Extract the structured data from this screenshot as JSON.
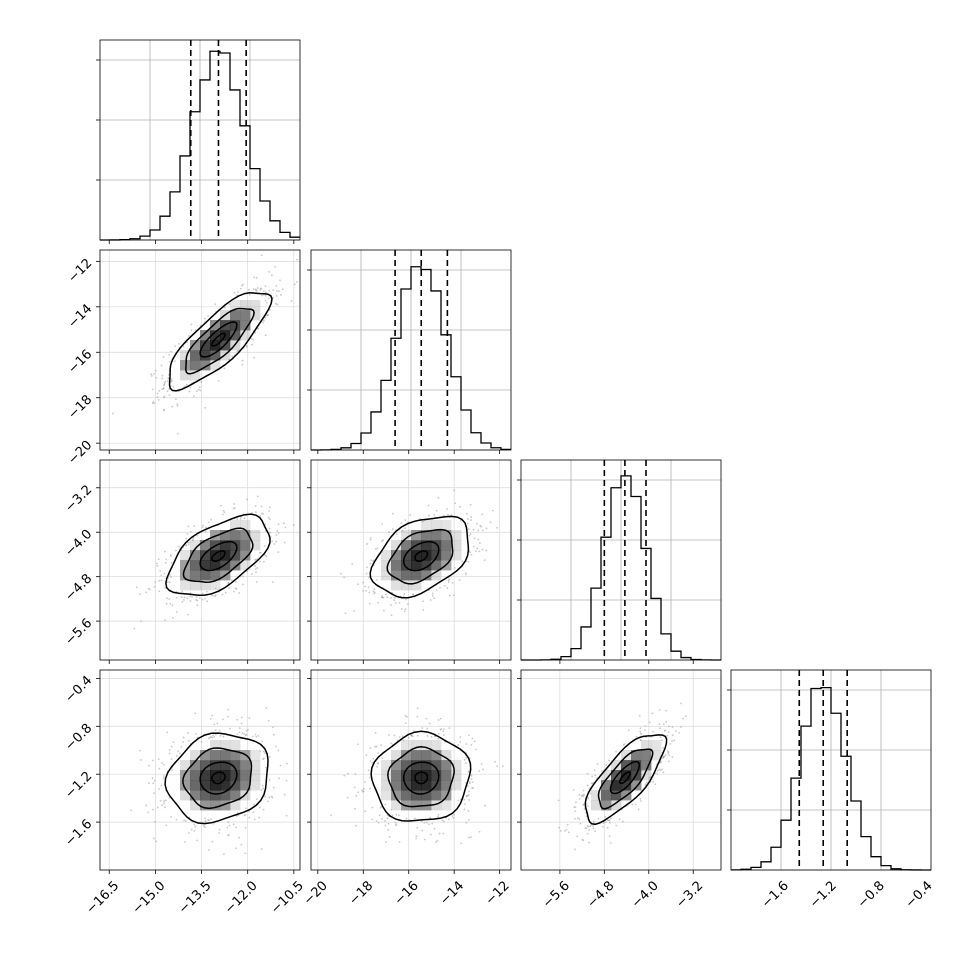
{
  "chart_data": {
    "type": "corner",
    "title": "",
    "grid": true,
    "quantile_line_style": "dashed",
    "params": [
      {
        "range": [
          -16.8,
          -10.3
        ],
        "ticks": [
          -16.5,
          -15.0,
          -13.5,
          -12.0,
          -10.5
        ],
        "tick_labels": [
          "−16.5",
          "−15.0",
          "−13.5",
          "−12.0",
          "−10.5"
        ],
        "mean": -12.95,
        "sd": 0.85,
        "quantiles": [
          -13.85,
          -12.95,
          -12.05
        ]
      },
      {
        "range": [
          -20.3,
          -11.5
        ],
        "ticks": [
          -20,
          -18,
          -16,
          -14,
          -12
        ],
        "tick_labels": [
          "−20",
          "−18",
          "−16",
          "−14",
          "−12"
        ],
        "mean": -15.45,
        "sd": 1.1,
        "quantiles": [
          -16.6,
          -15.45,
          -14.3
        ]
      },
      {
        "range": [
          -6.3,
          -2.7
        ],
        "ticks": [
          -5.6,
          -4.8,
          -4.0,
          -3.2
        ],
        "tick_labels": [
          "−5.6",
          "−4.8",
          "−4.0",
          "−3.2"
        ],
        "mean": -4.43,
        "sd": 0.37,
        "quantiles": [
          -4.8,
          -4.43,
          -4.05
        ]
      },
      {
        "range": [
          -2.0,
          -0.33
        ],
        "ticks": [
          -1.6,
          -1.2,
          -0.8,
          -0.4
        ],
        "tick_labels": [
          "−1.6",
          "−1.2",
          "−0.8",
          "−0.4"
        ],
        "mean": -1.23,
        "sd": 0.19,
        "quantiles": [
          -1.43,
          -1.23,
          -1.03
        ]
      }
    ],
    "correlations": [
      {
        "pair": [
          0,
          1
        ],
        "rho": 0.8
      },
      {
        "pair": [
          0,
          2
        ],
        "rho": 0.55
      },
      {
        "pair": [
          1,
          2
        ],
        "rho": 0.4
      },
      {
        "pair": [
          0,
          3
        ],
        "rho": 0.15
      },
      {
        "pair": [
          1,
          3
        ],
        "rho": 0.05
      },
      {
        "pair": [
          2,
          3
        ],
        "rho": 0.75
      }
    ]
  }
}
